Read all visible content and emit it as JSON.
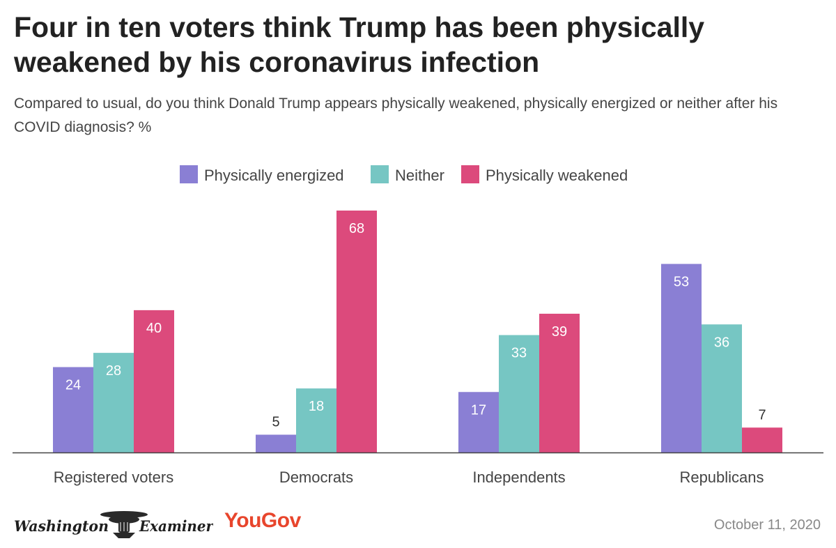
{
  "title": "Four in ten voters think Trump has been physically weakened by his coronavirus infection",
  "subtitle": "Compared to usual, do you think Donald Trump appears physically weakened, physically energized or neither after his COVID diagnosis? %",
  "footer": {
    "logo_washington_examiner": "Washington Examiner",
    "logo_yougov": "YouGov",
    "date": "October 11, 2020"
  },
  "colors": {
    "energized": "#8a7fd4",
    "neither": "#76c6c3",
    "weakened": "#dc4a7c"
  },
  "chart_data": {
    "type": "bar",
    "title": "Four in ten voters think Trump has been physically weakened by his coronavirus infection",
    "subtitle": "Compared to usual, do you think Donald Trump appears physically weakened, physically energized or neither after his COVID diagnosis? %",
    "xlabel": "",
    "ylabel": "",
    "ylim": [
      0,
      68
    ],
    "grid": false,
    "legend_position": "top",
    "categories": [
      "Registered voters",
      "Democrats",
      "Independents",
      "Republicans"
    ],
    "series": [
      {
        "name": "Physically energized",
        "color": "#8a7fd4",
        "values": [
          24,
          5,
          17,
          53
        ]
      },
      {
        "name": "Neither",
        "color": "#76c6c3",
        "values": [
          28,
          18,
          33,
          36
        ]
      },
      {
        "name": "Physically weakened",
        "color": "#dc4a7c",
        "values": [
          40,
          68,
          39,
          7
        ]
      }
    ]
  }
}
